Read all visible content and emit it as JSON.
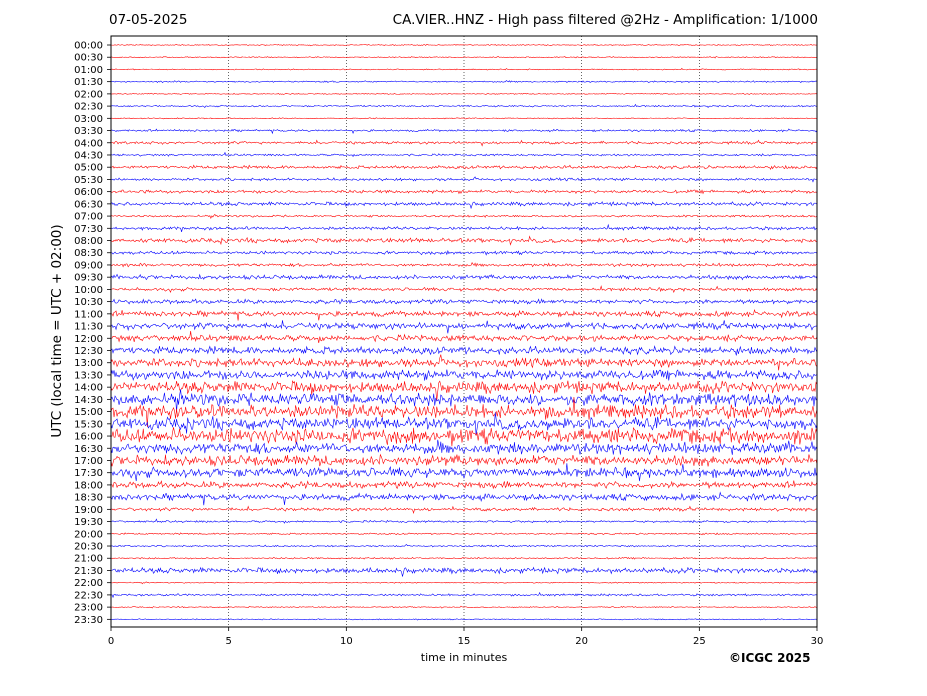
{
  "header": {
    "date": "07-05-2025",
    "title": "CA.VIER..HNZ - High pass filtered @2Hz - Amplification: 1/1000"
  },
  "footer": {
    "copyright": "©ICGC 2025"
  },
  "colors": {
    "trace_a": "#ff0000",
    "trace_b": "#0000ff",
    "axis": "#000000",
    "grid": "#000000"
  },
  "chart_data": {
    "type": "line",
    "title": "CA.VIER..HNZ - High pass filtered @2Hz - Amplification: 1/1000",
    "xlabel": "time in minutes",
    "ylabel": "UTC (local time = UTC + 02:00)",
    "xlim": [
      0,
      30
    ],
    "x_ticks": [
      0,
      5,
      10,
      15,
      20,
      25,
      30
    ],
    "grid": "vertical dotted lines at 5-minute ticks",
    "rows": [
      "00:00",
      "00:30",
      "01:00",
      "01:30",
      "02:00",
      "02:30",
      "03:00",
      "03:30",
      "04:00",
      "04:30",
      "05:00",
      "05:30",
      "06:00",
      "06:30",
      "07:00",
      "07:30",
      "08:00",
      "08:30",
      "09:00",
      "09:30",
      "10:00",
      "10:30",
      "11:00",
      "11:30",
      "12:00",
      "12:30",
      "13:00",
      "13:30",
      "14:00",
      "14:30",
      "15:00",
      "15:30",
      "16:00",
      "16:30",
      "17:00",
      "17:30",
      "18:00",
      "18:30",
      "19:00",
      "19:30",
      "20:00",
      "20:30",
      "21:00",
      "21:30",
      "22:00",
      "22:30",
      "23:00",
      "23:30"
    ],
    "row_colors": [
      "red",
      "red",
      "red",
      "blue",
      "red",
      "blue",
      "red",
      "blue",
      "red",
      "blue",
      "red",
      "blue",
      "red",
      "blue",
      "red",
      "blue",
      "red",
      "blue",
      "red",
      "blue",
      "red",
      "blue",
      "red",
      "blue",
      "red",
      "blue",
      "red",
      "blue",
      "red",
      "blue",
      "red",
      "blue",
      "red",
      "blue",
      "red",
      "blue",
      "red",
      "blue",
      "red",
      "blue",
      "red",
      "blue",
      "red",
      "blue",
      "red",
      "blue",
      "red",
      "blue"
    ],
    "relative_amplitude": [
      0.1,
      0.1,
      0.1,
      0.15,
      0.1,
      0.15,
      0.1,
      0.2,
      0.25,
      0.2,
      0.3,
      0.25,
      0.3,
      0.35,
      0.2,
      0.3,
      0.4,
      0.3,
      0.3,
      0.4,
      0.3,
      0.4,
      0.5,
      0.6,
      0.6,
      0.7,
      0.8,
      0.9,
      1.1,
      1.2,
      1.3,
      1.1,
      1.4,
      1.1,
      1.0,
      0.9,
      0.6,
      0.6,
      0.3,
      0.2,
      0.15,
      0.15,
      0.15,
      0.5,
      0.1,
      0.2,
      0.1,
      0.1
    ]
  }
}
